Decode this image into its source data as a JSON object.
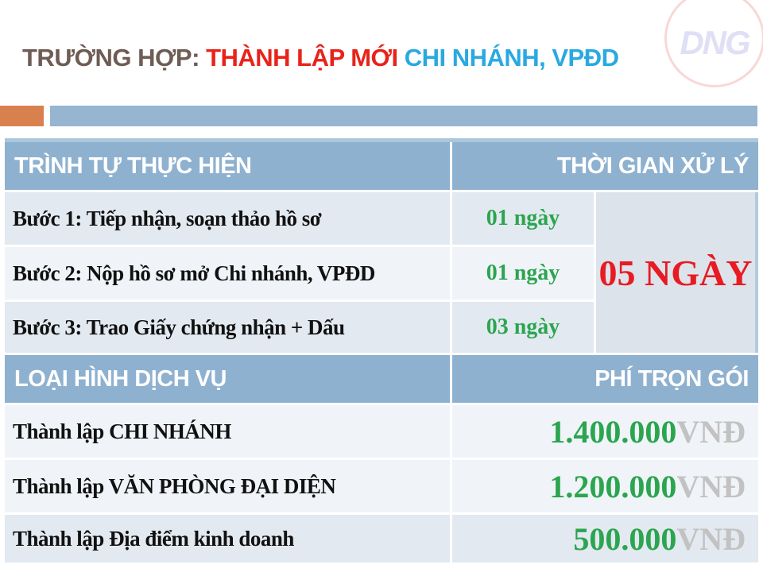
{
  "title": {
    "prefix": "TRƯỜNG HỢP:",
    "emphasis": "THÀNH LẬP MỚI",
    "suffix": "CHI NHÁNH, VPĐD"
  },
  "logo": {
    "text": "DNG"
  },
  "process": {
    "header": {
      "col1": "TRÌNH TỰ THỰC HIỆN",
      "col2": "THỜI GIAN XỬ LÝ"
    },
    "rows": [
      {
        "step": "Bước 1: Tiếp nhận, soạn thảo hồ sơ",
        "duration": "01 ngày"
      },
      {
        "step": "Bước 2: Nộp hồ sơ mở Chi nhánh, VPĐD",
        "duration": "01 ngày"
      },
      {
        "step": "Bước 3: Trao Giấy chứng nhận + Dấu",
        "duration": "03 ngày"
      }
    ],
    "total": "05 NGÀY"
  },
  "fees": {
    "header": {
      "col1": "LOẠI HÌNH DỊCH VỤ",
      "col2": "PHÍ TRỌN GÓI"
    },
    "rows": [
      {
        "service": "Thành lập CHI NHÁNH",
        "price": "1.400.000",
        "currency": "VNĐ"
      },
      {
        "service": "Thành lập VĂN PHÒNG ĐẠI DIỆN",
        "price": "1.200.000",
        "currency": "VNĐ"
      },
      {
        "service": "Thành lập Địa điểm kinh doanh",
        "price": "500.000",
        "currency": "VNĐ"
      }
    ]
  },
  "colors": {
    "title_gray": "#6e5c55",
    "title_red": "#e8231a",
    "title_blue": "#29a9e1",
    "header_blue": "#8fb1d0",
    "band_dark": "#e3e9f0",
    "band_light": "#f0f4f8",
    "merged_cell": "#dce3eb",
    "accent_orange": "#d9814e",
    "accent_bar_blue": "#95b5d1",
    "duration_green": "#2ba54f",
    "total_red": "#e81b22",
    "currency_gray": "#c2c2c2",
    "logo_circle_pink": "#f7d8d6",
    "logo_text_lavender": "#dfdff6"
  }
}
